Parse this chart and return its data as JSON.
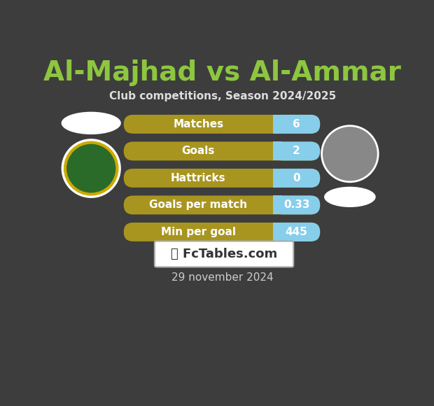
{
  "title": "Al-Majhad vs Al-Ammar",
  "subtitle": "Club competitions, Season 2024/2025",
  "date_label": "29 november 2024",
  "watermark": "📊 FcTables.com",
  "background_color": "#3d3d3d",
  "title_color": "#8dc63f",
  "subtitle_color": "#dddddd",
  "date_color": "#cccccc",
  "rows": [
    {
      "label": "Matches",
      "value": "6"
    },
    {
      "label": "Goals",
      "value": "2"
    },
    {
      "label": "Hattricks",
      "value": "0"
    },
    {
      "label": "Goals per match",
      "value": "0.33"
    },
    {
      "label": "Min per goal",
      "value": "445"
    }
  ],
  "bar_left_color": "#a89520",
  "bar_right_color": "#87ceeb",
  "bar_text_color": "#ffffff",
  "split_ratio": 0.76,
  "watermark_box_color": "#ffffff",
  "watermark_text_color": "#333333",
  "watermark_border_color": "#aaaaaa"
}
